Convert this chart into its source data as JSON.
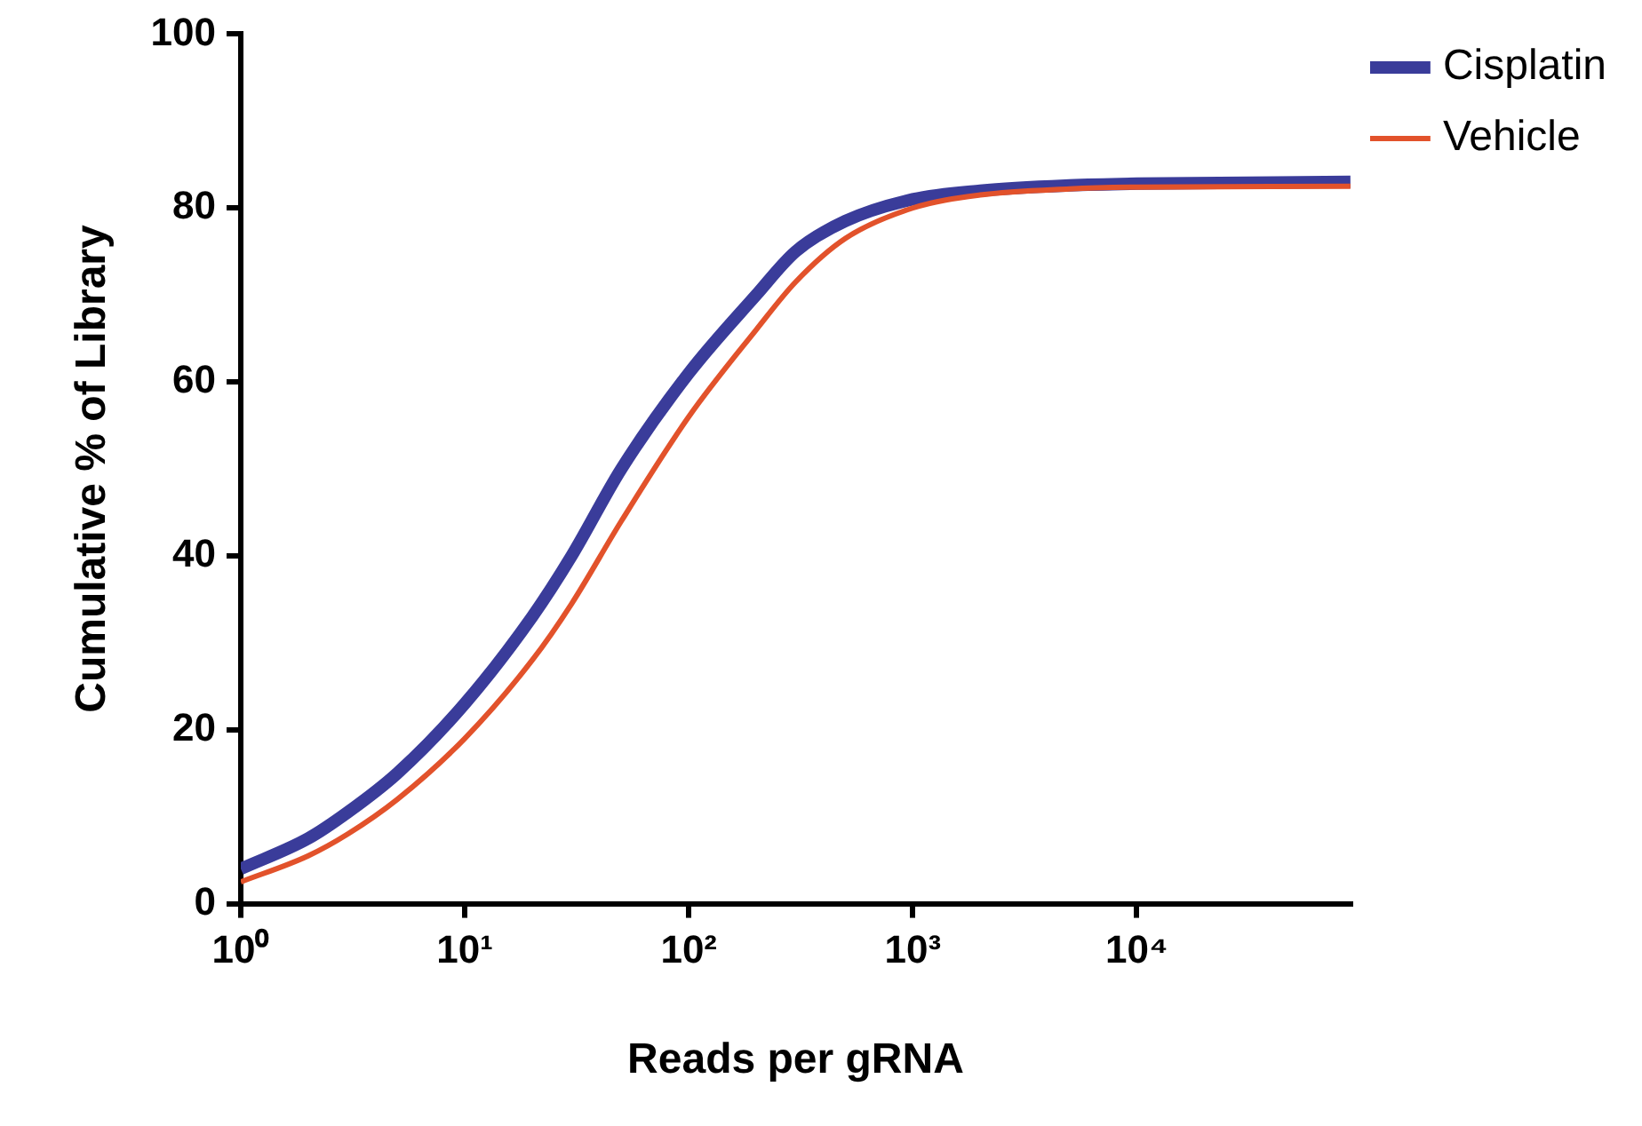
{
  "chart_data": {
    "type": "line",
    "xlabel": "Reads per gRNA",
    "ylabel": "Cumulative % of Library",
    "log": "x",
    "xlim": [
      1,
      90000
    ],
    "ylim": [
      0,
      100
    ],
    "xticks": [
      {
        "value": 1,
        "label": "10⁰"
      },
      {
        "value": 10,
        "label": "10¹"
      },
      {
        "value": 100,
        "label": "10²"
      },
      {
        "value": 1000,
        "label": "10³"
      },
      {
        "value": 10000,
        "label": "10⁴"
      }
    ],
    "yticks": [
      0,
      20,
      40,
      60,
      80,
      100
    ],
    "x": [
      1,
      2,
      3,
      5,
      10,
      20,
      30,
      50,
      100,
      200,
      300,
      500,
      1000,
      2000,
      5000,
      10000,
      90000
    ],
    "series": [
      {
        "name": "Cisplatin",
        "color": "#3a3c9a",
        "values": [
          4,
          7.5,
          10.5,
          15,
          23,
          33,
          40,
          50,
          61,
          70,
          75,
          78.5,
          81,
          82,
          82.6,
          82.8,
          83
        ]
      },
      {
        "name": "Vehicle",
        "color": "#e2522b",
        "values": [
          2.5,
          5.5,
          8,
          12,
          19,
          28,
          34.5,
          44,
          56,
          66,
          71.5,
          76.5,
          80,
          81.5,
          82.2,
          82.4,
          82.5
        ]
      }
    ],
    "grid": false,
    "legend": "top right",
    "marker": "none",
    "line_style": "solid"
  }
}
